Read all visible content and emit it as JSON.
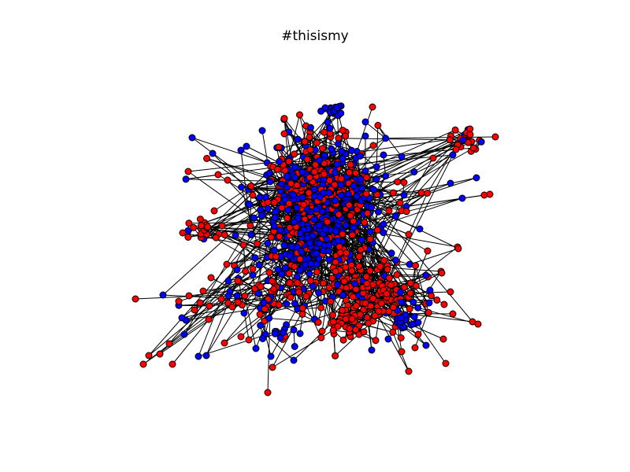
{
  "title": "#thisismy",
  "colors": {
    "group_a": "#ff0000",
    "group_b": "#0000ff",
    "edge": "#000000",
    "node_outline": "#000000",
    "background": "#ffffff"
  }
}
